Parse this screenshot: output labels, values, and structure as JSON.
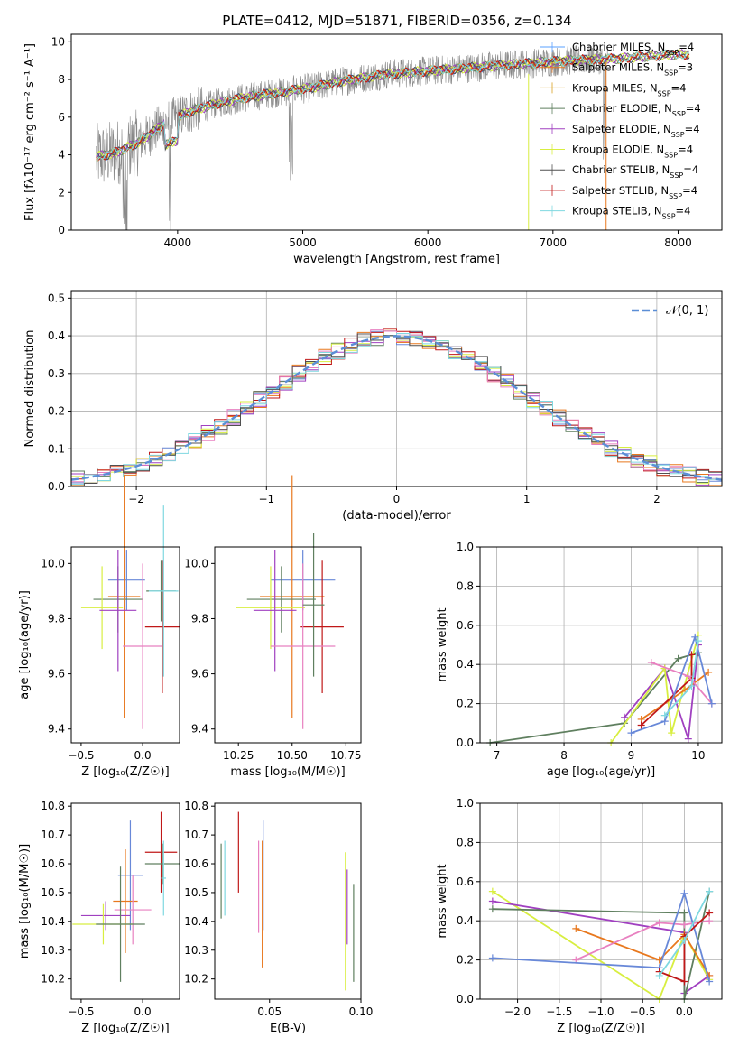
{
  "figure_title": "PLATE=0412, MJD=51871, FIBERID=0356, z=0.134",
  "colors": {
    "chabrier_miles": "#5aa0ff",
    "salpeter_miles": "#e8781e",
    "kroupa_miles": "#d8a020",
    "chabrier_elodie": "#5f7f5f",
    "salpeter_elodie": "#a040c0",
    "kroupa_elodie": "#d8ee40",
    "chabrier_stelib": "#505050",
    "salpeter_stelib": "#c01818",
    "kroupa_stelib": "#7fd8e0",
    "pink": "#e880c0",
    "blue": "#6888d8",
    "normal_fit": "#5b8ed6",
    "data_gray": "#888888"
  },
  "chart_data": [
    {
      "type": "line",
      "panel": "spectrum",
      "xlabel": "wavelength [Angstrom, rest frame]",
      "ylabel": "Flux [fλ10⁻¹⁷ erg cm⁻² s⁻¹ A⁻¹]",
      "xlim": [
        3150,
        8350
      ],
      "ylim": [
        0,
        10.4
      ],
      "xticks": [
        4000,
        5000,
        6000,
        7000,
        8000
      ],
      "yticks": [
        0,
        2,
        4,
        6,
        8,
        10
      ],
      "legend_position": "top-right",
      "legend": [
        {
          "label": "Chabrier MILES, N_SSP=4",
          "color": "#5aa0ff"
        },
        {
          "label": "Salpeter MILES, N_SSP=3",
          "color": "#e8781e"
        },
        {
          "label": "Kroupa MILES, N_SSP=4",
          "color": "#d8a020"
        },
        {
          "label": "Chabrier ELODIE, N_SSP=4",
          "color": "#5f7f5f"
        },
        {
          "label": "Salpeter ELODIE, N_SSP=4",
          "color": "#a040c0"
        },
        {
          "label": "Kroupa ELODIE, N_SSP=4",
          "color": "#d8ee40"
        },
        {
          "label": "Chabrier STELIB, N_SSP=4",
          "color": "#505050"
        },
        {
          "label": "Salpeter STELIB, N_SSP=4",
          "color": "#c01818"
        },
        {
          "label": "Kroupa STELIB, N_SSP=4",
          "color": "#7fd8e0"
        }
      ],
      "continuum": {
        "x": [
          3350,
          3500,
          3700,
          3900,
          4100,
          4300,
          4500,
          4700,
          4900,
          5100,
          5300,
          5500,
          5700,
          5900,
          6100,
          6300,
          6500,
          6700,
          6900,
          7100,
          7300,
          7500,
          7700,
          7900,
          8100
        ],
        "y": [
          3.9,
          4.1,
          4.7,
          5.7,
          6.3,
          6.7,
          7.0,
          7.2,
          7.4,
          7.6,
          7.9,
          8.1,
          8.3,
          8.4,
          8.5,
          8.6,
          8.7,
          8.8,
          8.9,
          9.0,
          9.05,
          9.1,
          9.2,
          9.3,
          9.35
        ]
      }
    },
    {
      "type": "line",
      "panel": "residual_histogram",
      "xlabel": "(data-model)/error",
      "ylabel": "Normed distribution",
      "xlim": [
        -2.5,
        2.5
      ],
      "ylim": [
        0,
        0.52
      ],
      "xticks": [
        -2,
        -1,
        0,
        1,
        2
      ],
      "yticks": [
        0.0,
        0.1,
        0.2,
        0.3,
        0.4,
        0.5
      ],
      "grid": true,
      "legend_position": "top-right",
      "legend": [
        {
          "label": "𝒩(0, 1)",
          "color": "#5b8ed6"
        }
      ],
      "normal_fit": {
        "mean": 0,
        "sigma": 1
      }
    },
    {
      "type": "scatter",
      "panel": "age_vs_Z",
      "xlabel": "Z [log₁₀(Z/Z☉)]",
      "ylabel": "age [log₁₀(age/yr)]",
      "xlim": [
        -0.58,
        0.3
      ],
      "ylim": [
        9.35,
        10.06
      ],
      "xticks": [
        -0.5,
        0.0
      ],
      "yticks": [
        9.4,
        9.6,
        9.8,
        10.0
      ],
      "points": [
        {
          "x": -0.13,
          "y": 9.94,
          "xerr": 0.15,
          "yerr": 0.11,
          "color": "#6888d8"
        },
        {
          "x": 0.15,
          "y": 9.9,
          "xerr": 0.12,
          "yerr": 0.11,
          "color": "#5f7f5f"
        },
        {
          "x": -0.2,
          "y": 9.87,
          "xerr": 0.2,
          "yerr": 0.12,
          "color": "#5f7f5f"
        },
        {
          "x": -0.15,
          "y": 9.88,
          "xerr": 0.13,
          "yerr": 0.44,
          "color": "#e8781e"
        },
        {
          "x": -0.33,
          "y": 9.84,
          "xerr": 0.17,
          "yerr": 0.15,
          "color": "#d8ee40"
        },
        {
          "x": -0.2,
          "y": 9.83,
          "xerr": 0.15,
          "yerr": 0.22,
          "color": "#a040c0"
        },
        {
          "x": 0.16,
          "y": 9.77,
          "xerr": 0.14,
          "yerr": 0.24,
          "color": "#c01818"
        },
        {
          "x": 0.0,
          "y": 9.7,
          "xerr": 0.16,
          "yerr": 0.3,
          "color": "#e880c0"
        },
        {
          "x": 0.17,
          "y": 9.9,
          "xerr": 0.12,
          "yerr": 0.31,
          "color": "#7fd8e0"
        }
      ]
    },
    {
      "type": "scatter",
      "panel": "age_vs_mass",
      "xlabel": "mass [log₁₀(M/M☉)]",
      "ylabel": "",
      "xlim": [
        10.14,
        10.82
      ],
      "ylim": [
        9.35,
        10.06
      ],
      "xticks": [
        10.25,
        10.5,
        10.75
      ],
      "yticks": [
        9.4,
        9.6,
        9.8,
        10.0
      ],
      "points": [
        {
          "x": 10.55,
          "y": 9.94,
          "xerr": 0.15,
          "yerr": 0.11,
          "color": "#6888d8"
        },
        {
          "x": 10.5,
          "y": 9.88,
          "xerr": 0.15,
          "yerr": 0.44,
          "color": "#e8781e"
        },
        {
          "x": 10.45,
          "y": 9.87,
          "xerr": 0.16,
          "yerr": 0.12,
          "color": "#5f7f5f"
        },
        {
          "x": 10.4,
          "y": 9.84,
          "xerr": 0.16,
          "yerr": 0.15,
          "color": "#d8ee40"
        },
        {
          "x": 10.42,
          "y": 9.83,
          "xerr": 0.1,
          "yerr": 0.22,
          "color": "#a040c0"
        },
        {
          "x": 10.64,
          "y": 9.77,
          "xerr": 0.1,
          "yerr": 0.24,
          "color": "#c01818"
        },
        {
          "x": 10.55,
          "y": 9.7,
          "xerr": 0.15,
          "yerr": 0.3,
          "color": "#e880c0"
        },
        {
          "x": 10.6,
          "y": 9.85,
          "xerr": 0.05,
          "yerr": 0.26,
          "color": "#5f7f5f"
        }
      ]
    },
    {
      "type": "line",
      "panel": "weight_vs_age",
      "xlabel": "age [log₁₀(age/yr)]",
      "ylabel": "mass weight",
      "xlim": [
        6.75,
        10.35
      ],
      "ylim": [
        0,
        1
      ],
      "xticks": [
        7,
        8,
        9,
        10
      ],
      "yticks": [
        0.0,
        0.2,
        0.4,
        0.6,
        0.8,
        1.0
      ],
      "grid": true,
      "series": [
        {
          "color": "#5f7f5f",
          "x": [
            6.9,
            8.9,
            9.7,
            10.0
          ],
          "y": [
            0.0,
            0.1,
            0.43,
            0.46
          ]
        },
        {
          "color": "#a040c0",
          "x": [
            8.9,
            9.5,
            9.85,
            10.0
          ],
          "y": [
            0.13,
            0.38,
            0.02,
            0.5
          ]
        },
        {
          "color": "#d8ee40",
          "x": [
            8.7,
            9.5,
            9.6,
            10.0
          ],
          "y": [
            0.0,
            0.38,
            0.05,
            0.55
          ]
        },
        {
          "color": "#e8781e",
          "x": [
            9.15,
            9.8,
            10.15
          ],
          "y": [
            0.12,
            0.27,
            0.36
          ]
        },
        {
          "color": "#c01818",
          "x": [
            9.15,
            9.9,
            9.9
          ],
          "y": [
            0.09,
            0.33,
            0.45
          ]
        },
        {
          "color": "#e880c0",
          "x": [
            9.3,
            9.85,
            10.2
          ],
          "y": [
            0.41,
            0.34,
            0.2
          ]
        },
        {
          "color": "#6888d8",
          "x": [
            9.0,
            9.5,
            9.95,
            10.2
          ],
          "y": [
            0.05,
            0.11,
            0.54,
            0.2
          ]
        },
        {
          "color": "#7fd8e0",
          "x": [
            9.5,
            9.9,
            10.0
          ],
          "y": [
            0.14,
            0.29,
            0.52
          ]
        }
      ]
    },
    {
      "type": "scatter",
      "panel": "mass_vs_Z",
      "xlabel": "Z [log₁₀(Z/Z☉)]",
      "ylabel": "mass [log₁₀(M/M☉)]",
      "xlim": [
        -0.58,
        0.3
      ],
      "ylim": [
        10.13,
        10.81
      ],
      "xticks": [
        -0.5,
        0.0
      ],
      "yticks": [
        10.2,
        10.3,
        10.4,
        10.5,
        10.6,
        10.7,
        10.8
      ],
      "points": [
        {
          "x": 0.15,
          "y": 10.64,
          "xerr": 0.13,
          "yerr": 0.14,
          "color": "#c01818"
        },
        {
          "x": 0.16,
          "y": 10.6,
          "xerr": 0.14,
          "yerr": 0.07,
          "color": "#5f7f5f"
        },
        {
          "x": -0.1,
          "y": 10.56,
          "xerr": 0.1,
          "yerr": 0.19,
          "color": "#6888d8"
        },
        {
          "x": -0.14,
          "y": 10.47,
          "xerr": 0.1,
          "yerr": 0.18,
          "color": "#e8781e"
        },
        {
          "x": -0.08,
          "y": 10.44,
          "xerr": 0.15,
          "yerr": 0.12,
          "color": "#e880c0"
        },
        {
          "x": -0.3,
          "y": 10.42,
          "xerr": 0.2,
          "yerr": 0.05,
          "color": "#a040c0"
        },
        {
          "x": -0.32,
          "y": 10.39,
          "xerr": 0.25,
          "yerr": 0.07,
          "color": "#d8ee40"
        },
        {
          "x": -0.18,
          "y": 10.39,
          "xerr": 0.2,
          "yerr": 0.2,
          "color": "#5f7f5f"
        },
        {
          "x": 0.17,
          "y": 10.55,
          "xerr": 0.02,
          "yerr": 0.13,
          "color": "#7fd8e0"
        }
      ]
    },
    {
      "type": "scatter",
      "panel": "mass_vs_EBV",
      "xlabel": "E(B-V)",
      "ylabel": "",
      "xlim": [
        0.02,
        0.1
      ],
      "ylim": [
        10.13,
        10.81
      ],
      "xticks": [
        0.05,
        0.1
      ],
      "yticks": [
        10.2,
        10.3,
        10.4,
        10.5,
        10.6,
        10.7,
        10.8
      ],
      "points": [
        {
          "x": 0.0235,
          "y": 10.54,
          "yerr": 0.13,
          "color": "#5f7f5f"
        },
        {
          "x": 0.0255,
          "y": 10.55,
          "yerr": 0.13,
          "color": "#7fd8e0"
        },
        {
          "x": 0.033,
          "y": 10.64,
          "yerr": 0.14,
          "color": "#c01818"
        },
        {
          "x": 0.044,
          "y": 10.52,
          "yerr": 0.16,
          "color": "#e880c0"
        },
        {
          "x": 0.046,
          "y": 10.46,
          "yerr": 0.22,
          "color": "#e8781e"
        },
        {
          "x": 0.0465,
          "y": 10.56,
          "yerr": 0.19,
          "color": "#6888d8"
        },
        {
          "x": 0.0915,
          "y": 10.4,
          "yerr": 0.24,
          "color": "#d8ee40"
        },
        {
          "x": 0.0925,
          "y": 10.45,
          "yerr": 0.13,
          "color": "#a040c0"
        },
        {
          "x": 0.096,
          "y": 10.36,
          "yerr": 0.17,
          "color": "#5f7f5f"
        }
      ]
    },
    {
      "type": "line",
      "panel": "weight_vs_Z",
      "xlabel": "Z [log₁₀(Z/Z☉)]",
      "ylabel": "mass weight",
      "xlim": [
        -2.45,
        0.45
      ],
      "ylim": [
        0,
        1
      ],
      "xticks": [
        -2.0,
        -1.5,
        -1.0,
        -0.5,
        0.0
      ],
      "yticks": [
        0.0,
        0.2,
        0.4,
        0.6,
        0.8,
        1.0
      ],
      "grid": true,
      "series": [
        {
          "color": "#d8ee40",
          "x": [
            -2.3,
            -0.3,
            0.0,
            0.3
          ],
          "y": [
            0.55,
            0.0,
            0.33,
            0.1
          ]
        },
        {
          "color": "#a040c0",
          "x": [
            -2.3,
            0.0,
            0.0,
            0.3
          ],
          "y": [
            0.5,
            0.34,
            0.03,
            0.12
          ]
        },
        {
          "color": "#5f7f5f",
          "x": [
            -2.3,
            0.0,
            0.0,
            0.3
          ],
          "y": [
            0.46,
            0.44,
            0.0,
            0.55
          ]
        },
        {
          "color": "#e8781e",
          "x": [
            -1.3,
            -0.3,
            0.0,
            0.3
          ],
          "y": [
            0.36,
            0.2,
            0.33,
            0.12
          ]
        },
        {
          "color": "#e880c0",
          "x": [
            -1.3,
            -0.3,
            0.0,
            0.3
          ],
          "y": [
            0.2,
            0.39,
            0.38,
            0.4
          ]
        },
        {
          "color": "#6888d8",
          "x": [
            -2.3,
            -0.3,
            0.0,
            0.3
          ],
          "y": [
            0.21,
            0.16,
            0.54,
            0.09
          ]
        },
        {
          "color": "#c01818",
          "x": [
            -0.3,
            0.0,
            0.0,
            0.3
          ],
          "y": [
            0.14,
            0.09,
            0.32,
            0.44
          ]
        },
        {
          "color": "#7fd8e0",
          "x": [
            -0.3,
            0.0,
            0.3
          ],
          "y": [
            0.12,
            0.3,
            0.55
          ]
        }
      ]
    }
  ]
}
